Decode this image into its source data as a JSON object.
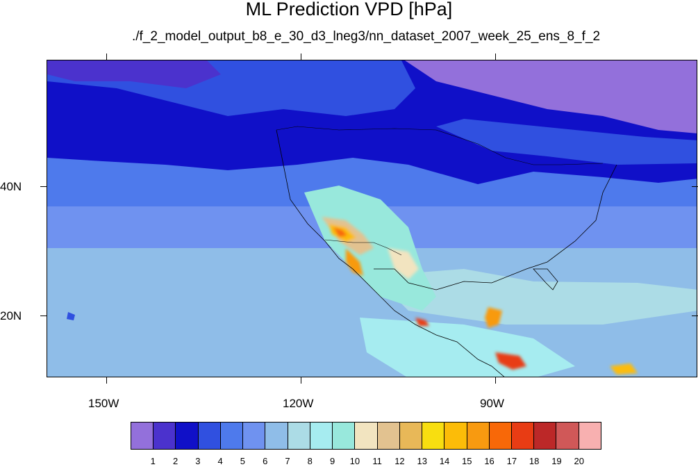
{
  "header": {
    "title": "ML Prediction VPD [hPa]",
    "subtitle": "./f_2_model_output_b8_e_30_d3_lneg3/nn_dataset_2007_week_25_ens_8_f_2"
  },
  "axes": {
    "x_ticks": [
      "150W",
      "120W",
      "90W"
    ],
    "y_ticks": [
      "40N",
      "20N"
    ]
  },
  "colorbar": {
    "labels": [
      "1",
      "2",
      "3",
      "4",
      "5",
      "6",
      "7",
      "8",
      "9",
      "10",
      "11",
      "12",
      "13",
      "14",
      "15",
      "16",
      "17",
      "18",
      "19",
      "20"
    ],
    "colors": [
      "#9370db",
      "#4b32cd",
      "#1010c8",
      "#3050e0",
      "#4e7aec",
      "#6f92f0",
      "#8fbde8",
      "#acdce6",
      "#a6ecf0",
      "#98e8dc",
      "#f2e4c0",
      "#e2c290",
      "#e8b858",
      "#f8de10",
      "#fcbc08",
      "#f89a10",
      "#f86808",
      "#e83c14",
      "#bc2828",
      "#d05858",
      "#f8b0b0"
    ]
  }
}
